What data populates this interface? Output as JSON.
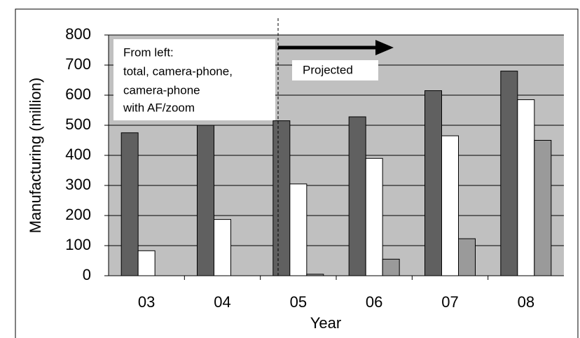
{
  "chart_data": {
    "type": "bar",
    "ylabel": "Manufacturing (million)",
    "xlabel": "Year",
    "annotations": [
      "From left:",
      "total, camera-phone,",
      "camera-phone",
      "with AF/zoom",
      "Projected"
    ],
    "categories": [
      "03",
      "04",
      "05",
      "06",
      "07",
      "08"
    ],
    "series": [
      {
        "color": "#606060",
        "values": [
          475,
          500,
          515,
          528,
          615,
          680
        ]
      },
      {
        "color": "#ffffff",
        "values": [
          83,
          187,
          305,
          390,
          465,
          585
        ]
      },
      {
        "color": "#9a9a9a",
        "values": [
          null,
          null,
          5,
          55,
          123,
          450
        ]
      }
    ],
    "ylim": [
      0,
      800
    ],
    "yticks": [
      0,
      100,
      200,
      300,
      400,
      500,
      600,
      700,
      800
    ],
    "grid": true,
    "background": "#c0c0c0"
  }
}
